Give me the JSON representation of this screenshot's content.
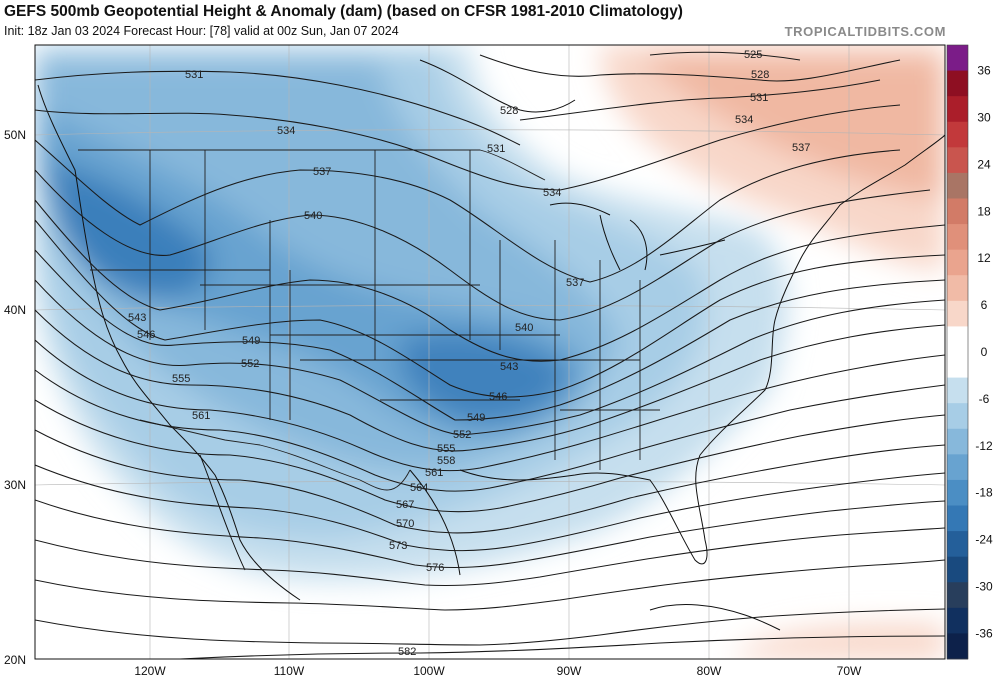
{
  "header": {
    "title": "GEFS 500mb Geopotential Height & Anomaly (dam) (based on CFSR 1981-2010 Climatology)",
    "subtitle": "Init: 18z Jan 03 2024   Forecast Hour: [78]   valid at 00z Sun, Jan 07 2024",
    "brand": "TROPICALTIDBITS.COM"
  },
  "axes": {
    "lat_labels": [
      "50N",
      "40N",
      "30N",
      "20N"
    ],
    "lon_labels": [
      "120W",
      "110W",
      "100W",
      "90W",
      "80W",
      "70W"
    ]
  },
  "contour_labels": [
    "525",
    "528",
    "531",
    "534",
    "537",
    "540",
    "543",
    "546",
    "549",
    "552",
    "555",
    "558",
    "561",
    "564",
    "567",
    "570",
    "573",
    "576",
    "582"
  ],
  "colorbar": {
    "ticks": [
      "36",
      "30",
      "24",
      "18",
      "12",
      "6",
      "0",
      "-6",
      "-12",
      "-18",
      "-24",
      "-30",
      "-36"
    ],
    "colors": [
      "#7b1c88",
      "#8e0f22",
      "#ab1e2a",
      "#c2393b",
      "#c9554e",
      "#a97565",
      "#d27b67",
      "#e0907a",
      "#eaa48e",
      "#f1bba7",
      "#f8d7c9",
      "#ffffff",
      "#ffffff",
      "#c6dfee",
      "#a7cde6",
      "#87b8db",
      "#68a3d0",
      "#4b8ec4",
      "#3478b5",
      "#245f9a",
      "#194a7f",
      "#283e5c",
      "#11305f",
      "#0d214a"
    ]
  }
}
